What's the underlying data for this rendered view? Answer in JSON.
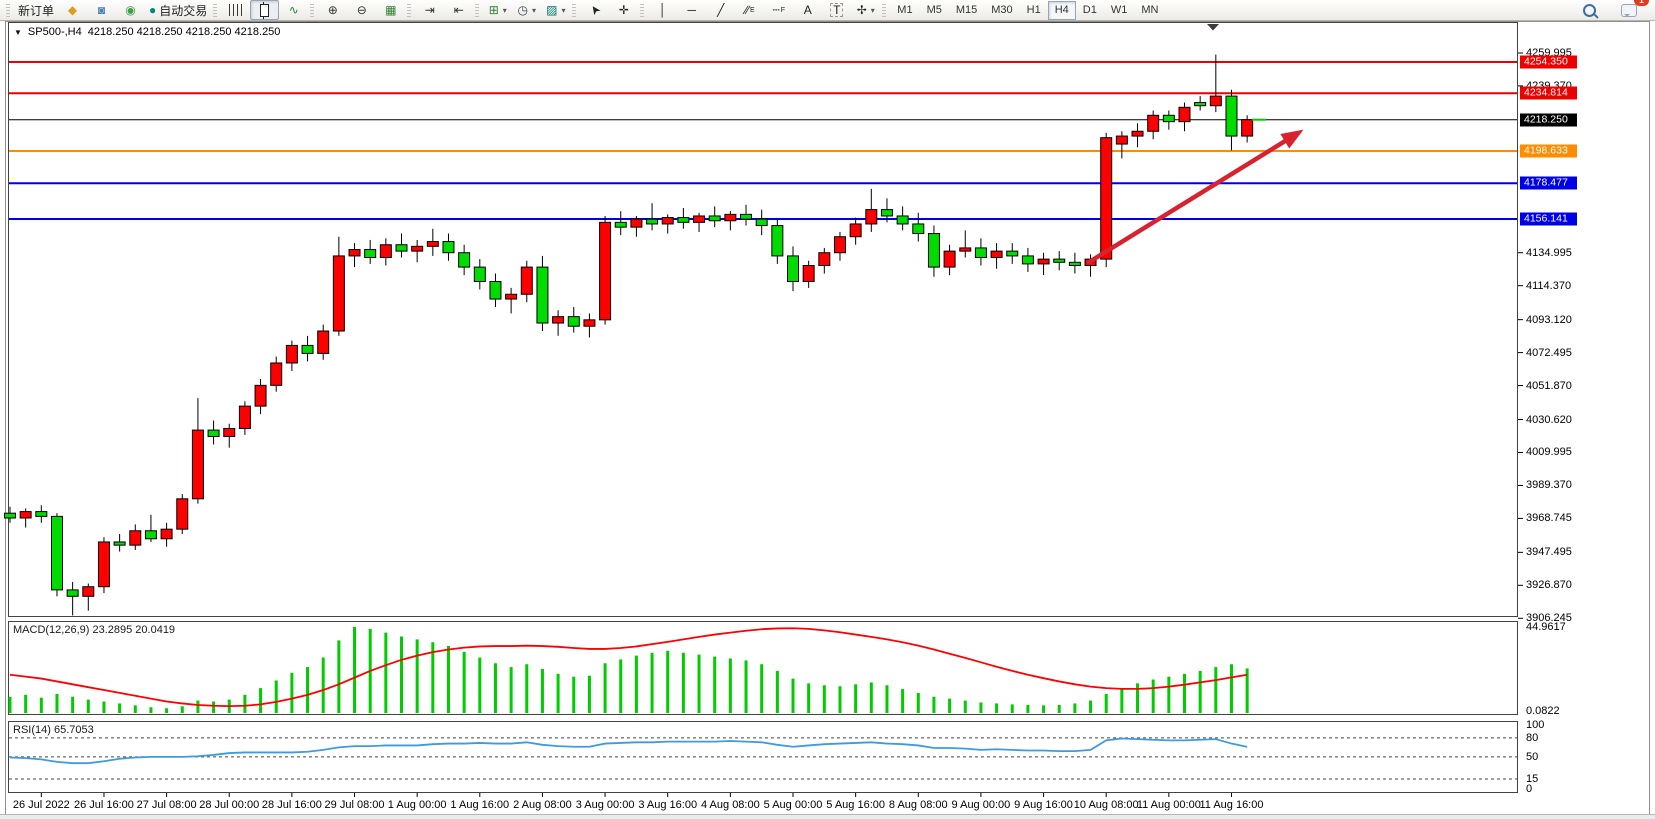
{
  "window": {
    "symbol_label": "SP500-,H4",
    "quote_line": "4218.250 4218.250 4218.250 4218.250"
  },
  "toolbar": {
    "groups": [
      {
        "items": [
          {
            "name": "new-order-button",
            "label": "新订单"
          },
          {
            "name": "quotes-window-icon",
            "glyph": "◆",
            "color": "#D9A017"
          },
          {
            "name": "account-icon",
            "glyph": "◙",
            "color": "#4A7EBB"
          },
          {
            "name": "signals-icon",
            "glyph": "◉",
            "color": "#3FA047"
          },
          {
            "name": "autotrade-button",
            "glyph": "●",
            "color": "#00897B",
            "label": "自动交易"
          }
        ]
      },
      {
        "items": [
          {
            "name": "bar-chart-icon",
            "css": "ic-bars"
          },
          {
            "name": "candlestick-chart-icon",
            "css": "ic-candle",
            "pressed": true
          },
          {
            "name": "line-chart-icon",
            "glyph": "∿",
            "color": "#2E7D32"
          }
        ]
      },
      {
        "items": [
          {
            "name": "zoom-in-icon",
            "glyph": "⊕",
            "color": "#333333"
          },
          {
            "name": "zoom-out-icon",
            "glyph": "⊖",
            "color": "#333333"
          },
          {
            "name": "tile-windows-icon",
            "glyph": "▦",
            "color": "#2E7D32"
          }
        ]
      },
      {
        "items": [
          {
            "name": "auto-scroll-icon",
            "glyph": "⇥",
            "color": "#333333"
          },
          {
            "name": "chart-shift-icon",
            "glyph": "⇤",
            "color": "#333333"
          }
        ]
      },
      {
        "items": [
          {
            "name": "new-chart-icon",
            "glyph": "⊞",
            "color": "#2E7D32",
            "dropdown": true
          },
          {
            "name": "periods-icon",
            "glyph": "◷",
            "color": "#334455",
            "dropdown": true
          },
          {
            "name": "templates-icon",
            "glyph": "▨",
            "color": "#00796B",
            "dropdown": true
          }
        ]
      },
      {
        "items": [
          {
            "name": "cursor-icon",
            "glyph": "➤",
            "color": "#222222",
            "rot": -125
          },
          {
            "name": "crosshair-icon",
            "glyph": "✛",
            "color": "#222222"
          }
        ]
      },
      {
        "items": [
          {
            "name": "vertical-line-icon",
            "glyph": "│",
            "color": "#222222"
          },
          {
            "name": "horizontal-line-icon",
            "glyph": "─",
            "color": "#222222"
          },
          {
            "name": "trendline-icon",
            "glyph": "╱",
            "color": "#222222"
          },
          {
            "name": "equidistant-channel-icon",
            "glyph": "∕∕",
            "sub": "E",
            "color": "#222222"
          },
          {
            "name": "fibonacci-icon",
            "glyph": "┄",
            "sub": "F",
            "color": "#222222"
          },
          {
            "name": "text-icon",
            "glyph": "A",
            "color": "#222222"
          },
          {
            "name": "text-label-icon",
            "glyph": "T",
            "color": "#222222",
            "boxed": true
          },
          {
            "name": "arrows-icon",
            "glyph": "✢",
            "color": "#222222",
            "dropdown": true
          }
        ]
      }
    ],
    "timeframes": [
      "M1",
      "M5",
      "M15",
      "M30",
      "H1",
      "H4",
      "D1",
      "W1",
      "MN"
    ],
    "active_timeframe": "H4",
    "notification_badge": "1"
  },
  "chart_data": {
    "type": "candlestick",
    "symbol": "SP500-",
    "period": "H4",
    "colors": {
      "up": "#FF0000",
      "down": "#00DC00",
      "wick": "#000000",
      "macd_hist": "#00CC00",
      "macd_signal": "#FF0000",
      "rsi_line": "#3E9BDE",
      "arrow": "#D8232F",
      "last_dash": "#00CC00"
    },
    "y_axis_ticks": [
      "4259.995",
      "4239.370",
      "4134.995",
      "4114.370",
      "4093.120",
      "4072.495",
      "4051.870",
      "4030.620",
      "4009.995",
      "3989.370",
      "3968.745",
      "3947.495",
      "3926.870",
      "3906.245"
    ],
    "levels": [
      {
        "label": "4254.350",
        "price": 4254.35,
        "color": "#EC0000",
        "width": 2
      },
      {
        "label": "4234.814",
        "price": 4234.814,
        "color": "#EC0000",
        "width": 2
      },
      {
        "label": "4218.250",
        "price": 4218.25,
        "color": "#000000",
        "width": 1,
        "role": "bid-line"
      },
      {
        "label": "4198.633",
        "price": 4198.633,
        "color": "#FF8C00",
        "width": 2
      },
      {
        "label": "4178.477",
        "price": 4178.477,
        "color": "#0000E6",
        "width": 2
      },
      {
        "label": "4156.141",
        "price": 4156.141,
        "color": "#0000E6",
        "width": 2
      }
    ],
    "x_labels": [
      "26 Jul 2022",
      "26 Jul 16:00",
      "27 Jul 08:00",
      "28 Jul 00:00",
      "28 Jul 16:00",
      "29 Jul 08:00",
      "1 Aug 00:00",
      "1 Aug 16:00",
      "2 Aug 08:00",
      "3 Aug 00:00",
      "3 Aug 16:00",
      "4 Aug 08:00",
      "5 Aug 00:00",
      "5 Aug 16:00",
      "8 Aug 08:00",
      "9 Aug 00:00",
      "9 Aug 16:00",
      "10 Aug 08:00",
      "11 Aug 00:00",
      "11 Aug 16:00"
    ],
    "candles": [
      [
        3972,
        3976,
        3966,
        3969
      ],
      [
        3969,
        3975,
        3963,
        3973
      ],
      [
        3973,
        3977,
        3966,
        3970
      ],
      [
        3970,
        3972,
        3920,
        3924
      ],
      [
        3924,
        3929,
        3908,
        3920
      ],
      [
        3920,
        3928,
        3911,
        3926
      ],
      [
        3926,
        3957,
        3922,
        3954
      ],
      [
        3954,
        3959,
        3948,
        3952
      ],
      [
        3952,
        3965,
        3949,
        3961
      ],
      [
        3961,
        3971,
        3954,
        3956
      ],
      [
        3956,
        3966,
        3951,
        3962
      ],
      [
        3962,
        3984,
        3959,
        3981
      ],
      [
        3981,
        4044,
        3978,
        4024
      ],
      [
        4024,
        4030,
        4015,
        4020
      ],
      [
        4020,
        4028,
        4013,
        4025
      ],
      [
        4025,
        4042,
        4021,
        4039
      ],
      [
        4039,
        4056,
        4034,
        4052
      ],
      [
        4052,
        4070,
        4048,
        4066
      ],
      [
        4066,
        4080,
        4061,
        4077
      ],
      [
        4077,
        4083,
        4067,
        4072
      ],
      [
        4072,
        4090,
        4068,
        4086
      ],
      [
        4086,
        4145,
        4083,
        4133
      ],
      [
        4133,
        4141,
        4126,
        4137
      ],
      [
        4137,
        4143,
        4128,
        4132
      ],
      [
        4132,
        4144,
        4127,
        4140
      ],
      [
        4140,
        4147,
        4132,
        4136
      ],
      [
        4136,
        4143,
        4129,
        4139
      ],
      [
        4139,
        4150,
        4133,
        4142
      ],
      [
        4142,
        4147,
        4130,
        4135
      ],
      [
        4135,
        4140,
        4121,
        4126
      ],
      [
        4126,
        4131,
        4112,
        4117
      ],
      [
        4117,
        4122,
        4101,
        4106
      ],
      [
        4106,
        4113,
        4097,
        4109
      ],
      [
        4109,
        4130,
        4104,
        4126
      ],
      [
        4126,
        4133,
        4086,
        4091
      ],
      [
        4091,
        4099,
        4083,
        4095
      ],
      [
        4095,
        4101,
        4085,
        4089
      ],
      [
        4089,
        4097,
        4082,
        4093
      ],
      [
        4093,
        4158,
        4090,
        4154
      ],
      [
        4154,
        4161,
        4146,
        4151
      ],
      [
        4151,
        4158,
        4145,
        4156
      ],
      [
        4156,
        4166,
        4149,
        4153
      ],
      [
        4153,
        4159,
        4147,
        4157
      ],
      [
        4157,
        4163,
        4150,
        4154
      ],
      [
        4154,
        4160,
        4148,
        4158
      ],
      [
        4158,
        4164,
        4151,
        4155
      ],
      [
        4155,
        4161,
        4149,
        4159
      ],
      [
        4159,
        4165,
        4152,
        4156
      ],
      [
        4156,
        4162,
        4146,
        4152
      ],
      [
        4152,
        4156,
        4128,
        4133
      ],
      [
        4133,
        4139,
        4111,
        4117
      ],
      [
        4117,
        4130,
        4113,
        4127
      ],
      [
        4127,
        4138,
        4122,
        4135
      ],
      [
        4135,
        4148,
        4130,
        4145
      ],
      [
        4145,
        4157,
        4140,
        4153
      ],
      [
        4153,
        4175,
        4148,
        4162
      ],
      [
        4162,
        4169,
        4154,
        4158
      ],
      [
        4158,
        4164,
        4149,
        4153
      ],
      [
        4153,
        4160,
        4142,
        4147
      ],
      [
        4147,
        4152,
        4120,
        4126
      ],
      [
        4126,
        4140,
        4121,
        4136
      ],
      [
        4136,
        4149,
        4132,
        4138
      ],
      [
        4138,
        4144,
        4127,
        4132
      ],
      [
        4132,
        4141,
        4125,
        4136
      ],
      [
        4136,
        4141,
        4128,
        4133
      ],
      [
        4133,
        4138,
        4123,
        4128
      ],
      [
        4128,
        4135,
        4121,
        4131
      ],
      [
        4131,
        4136,
        4124,
        4129
      ],
      [
        4129,
        4135,
        4122,
        4127
      ],
      [
        4127,
        4134,
        4120,
        4131
      ],
      [
        4131,
        4210,
        4126,
        4207
      ],
      [
        4203,
        4211,
        4194,
        4208
      ],
      [
        4208,
        4216,
        4201,
        4211
      ],
      [
        4211,
        4224,
        4206,
        4221
      ],
      [
        4221,
        4224,
        4212,
        4217
      ],
      [
        4217,
        4229,
        4211,
        4226
      ],
      [
        4229,
        4233,
        4224,
        4227
      ],
      [
        4227,
        4259,
        4223,
        4233
      ],
      [
        4233,
        4237,
        4199,
        4208
      ],
      [
        4208,
        4221,
        4204,
        4218.25
      ]
    ],
    "last_price": 4218.25,
    "trend_arrow": {
      "from_bar": 68.8,
      "from_price": 4128.5,
      "to_bar": 82.6,
      "to_price": 4212
    },
    "macd": {
      "label": "MACD(12,26,9) 23.2895 20.0419",
      "scale_max_label": "44.9617",
      "scale_min_label": "0.0822",
      "scale_max": 44.9617,
      "values": [
        8.5,
        9.5,
        8,
        10,
        8.5,
        7,
        6,
        5,
        4,
        3,
        2.5,
        3.5,
        6.5,
        6,
        7,
        9.5,
        13,
        17,
        21,
        24,
        29,
        38,
        45,
        44,
        42,
        40,
        38.5,
        37,
        35,
        32,
        29,
        26,
        24,
        25.5,
        23,
        20.5,
        19,
        19.5,
        26,
        28,
        30,
        31.5,
        32.5,
        31.5,
        30.5,
        29.5,
        28.5,
        27.5,
        25.5,
        22,
        18,
        15.5,
        14.5,
        14,
        15,
        16,
        14.5,
        12.5,
        10.5,
        8.5,
        7.5,
        6.5,
        5.5,
        5,
        4.5,
        4.2,
        4,
        4.2,
        5,
        6.5,
        10,
        13,
        15.5,
        17.5,
        19,
        20.5,
        22,
        24,
        25.5,
        23.3
      ],
      "signal": [
        20,
        19,
        18,
        16.5,
        15,
        13.5,
        12,
        10.5,
        9,
        7.5,
        6,
        5,
        4.2,
        3.8,
        3.6,
        3.8,
        4.5,
        5.8,
        7.5,
        9.5,
        12,
        15,
        18.5,
        22,
        25,
        27.8,
        30,
        31.8,
        33.2,
        34.2,
        34.8,
        35,
        35,
        35.2,
        35,
        34.6,
        34,
        33.5,
        33.5,
        34,
        34.8,
        36,
        37.2,
        38.5,
        39.8,
        41,
        42,
        43,
        43.8,
        44.2,
        44.3,
        44,
        43.2,
        42.2,
        41,
        39.8,
        38.5,
        37,
        35.2,
        33.2,
        31,
        28.8,
        26.5,
        24.2,
        22,
        20,
        18.2,
        16.5,
        15,
        13.8,
        13,
        12.6,
        12.6,
        13,
        13.8,
        14.8,
        16,
        17.2,
        18.6,
        20
      ]
    },
    "rsi": {
      "label": "RSI(14) 65.7053",
      "scale_labels": [
        "100",
        "80",
        "50",
        "15",
        "0"
      ],
      "levels": [
        80,
        50,
        15
      ],
      "values": [
        49,
        48,
        46,
        42,
        40,
        40,
        43,
        47,
        49,
        50,
        50,
        50,
        51,
        53,
        56,
        57,
        57,
        57,
        57,
        58,
        61,
        65,
        67,
        67,
        68,
        68,
        68,
        70,
        71,
        71,
        72,
        71,
        71,
        73,
        69,
        67,
        66,
        66,
        71,
        72,
        73,
        73,
        74,
        74,
        74,
        74,
        75,
        74,
        73,
        69,
        66,
        68,
        70,
        71,
        72,
        73,
        71,
        70,
        68,
        64,
        64,
        63,
        61,
        62,
        61,
        60,
        60,
        59,
        59,
        61,
        76,
        79,
        78,
        77,
        76,
        76,
        77,
        78,
        71,
        65.7
      ]
    }
  }
}
